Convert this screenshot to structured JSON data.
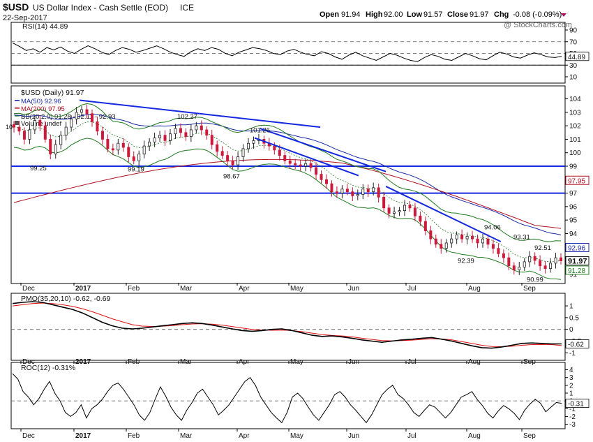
{
  "header": {
    "symbol": "$USD",
    "name": "US Dollar Index - Cash Settle (EOD)",
    "exchange": "ICE",
    "date": "22-Sep-2017",
    "open_label": "Open",
    "open": "91.94",
    "high_label": "High",
    "high": "92.00",
    "low_label": "Low",
    "low": "91.57",
    "close_label": "Close",
    "close": "91.97",
    "chg_label": "Chg",
    "chg": "-0.08 (-0.09%)",
    "watermark": "@ StockCharts.com"
  },
  "colors": {
    "price_up": "#222222",
    "price_down": "#cc1a3a",
    "ma50": "#1a2aa8",
    "ma200": "#b01020",
    "bollinger": "#1f7a1f",
    "bb_mid": "#1f7a1f",
    "trend": "#1428e0",
    "pmo": "#000000",
    "pmo_signal": "#e01010",
    "rsi_fill": "#7a5a5a"
  },
  "chart_data": [
    {
      "type": "line",
      "panel": "rsi",
      "title": "RSI(14) 44.89",
      "y_ticks": [
        10,
        30,
        50,
        70,
        90
      ],
      "ylim": [
        10,
        90
      ],
      "guides": [
        30,
        50,
        70
      ],
      "last": "44.89",
      "series": [
        {
          "name": "RSI(14)",
          "values": [
            68,
            62,
            55,
            58,
            52,
            60,
            56,
            61,
            54,
            50,
            57,
            63,
            58,
            52,
            48,
            55,
            60,
            57,
            52,
            55,
            59,
            63,
            58,
            52,
            48,
            45,
            53,
            58,
            55,
            60,
            57,
            50,
            46,
            52,
            56,
            60,
            58,
            55,
            50,
            48,
            54,
            57,
            52,
            48,
            46,
            53,
            50,
            44,
            40,
            47,
            52,
            46,
            42,
            38,
            44,
            50,
            47,
            42,
            38,
            36,
            43,
            48,
            45,
            40,
            38,
            44,
            50,
            46,
            41,
            39,
            46,
            52,
            49,
            44,
            42,
            47,
            51,
            48,
            44,
            43,
            45
          ]
        }
      ]
    },
    {
      "type": "candlestick",
      "panel": "price",
      "title": "$USD (Daily) 91.97",
      "legend": [
        {
          "label": "MA(50) 92.96",
          "color": "#1a2aa8"
        },
        {
          "label": "MA(200) 97.95",
          "color": "#b01020"
        },
        {
          "label": "BB(20,2.0) 91.28 - 92.11 - 92.93",
          "color": "#1f7a1f"
        },
        {
          "label": "Volume undef",
          "color": "#555555"
        }
      ],
      "y_ticks": [
        91,
        92,
        93,
        94,
        95,
        96,
        97,
        98,
        99,
        100,
        101,
        102,
        103,
        104
      ],
      "ylim": [
        90.6,
        104.6
      ],
      "x_ticks": [
        "Dec",
        "2017",
        "Feb",
        "Mar",
        "Apr",
        "May",
        "Jun",
        "Jul",
        "Aug",
        "Sep"
      ],
      "closes": [
        101.9,
        101.6,
        101.0,
        101.7,
        102.4,
        102.0,
        101.0,
        99.9,
        100.6,
        101.3,
        101.9,
        102.5,
        103.0,
        103.2,
        102.9,
        102.3,
        101.6,
        101.0,
        100.3,
        100.2,
        100.7,
        100.4,
        99.7,
        99.4,
        99.9,
        100.5,
        100.8,
        101.1,
        101.3,
        100.9,
        101.4,
        101.8,
        101.5,
        101.2,
        101.7,
        102.0,
        101.7,
        101.3,
        100.6,
        100.1,
        99.8,
        99.4,
        99.1,
        99.7,
        100.3,
        100.7,
        100.9,
        101.0,
        100.7,
        100.5,
        100.2,
        99.8,
        99.4,
        99.2,
        99.1,
        99.0,
        99.2,
        98.9,
        98.4,
        98.0,
        97.7,
        97.1,
        97.0,
        97.3,
        97.1,
        96.8,
        96.9,
        97.3,
        97.1,
        97.4,
        96.7,
        95.9,
        95.5,
        95.6,
        95.7,
        96.1,
        95.9,
        95.3,
        94.9,
        94.2,
        93.6,
        93.2,
        92.9,
        93.3,
        93.6,
        93.9,
        93.6,
        93.8,
        93.6,
        93.3,
        93.6,
        93.2,
        92.9,
        92.5,
        92.2,
        91.6,
        91.3,
        91.5,
        91.9,
        92.3,
        92.0,
        91.6,
        91.4,
        91.8,
        92.2,
        91.97
      ],
      "callouts": [
        "99.25",
        "99.19",
        "102.27",
        "98.67",
        "101.26",
        "94.06",
        "93.31",
        "92.39",
        "92.51",
        "90.99"
      ],
      "horizontal_lines": [
        99.0,
        97.0
      ],
      "trend_lines": [
        [
          103.9,
          101.9
        ],
        [
          101.8,
          98.6
        ],
        [
          101.1,
          98.3
        ],
        [
          97.5,
          93.4
        ]
      ],
      "right_badges": [
        {
          "label": "97.95",
          "value": 97.95,
          "color": "#b01020"
        },
        {
          "label": "92.96",
          "value": 92.96,
          "color": "#1a2aa8"
        },
        {
          "label": "91.97",
          "value": 91.97,
          "color": "#111111"
        },
        {
          "label": "91.28",
          "value": 91.28,
          "color": "#1f7a1f"
        }
      ]
    },
    {
      "type": "line",
      "panel": "pmo",
      "title": "PMO(35,20,10) -0.62, -0.69",
      "y_ticks": [
        1.0,
        0.5,
        0.0,
        -0.5,
        -1.0
      ],
      "ylim": [
        -1.2,
        1.3
      ],
      "last": "-0.62",
      "series": [
        {
          "name": "PMO(35,20,10)",
          "values": [
            1.1,
            1.15,
            1.18,
            1.15,
            1.05,
            0.95,
            0.85,
            0.7,
            0.5,
            0.3,
            0.15,
            0.05,
            0.02,
            0.05,
            0.1,
            0.15,
            0.2,
            0.25,
            0.28,
            0.25,
            0.18,
            0.1,
            0.02,
            -0.05,
            -0.08,
            -0.05,
            0.0,
            0.02,
            -0.05,
            -0.15,
            -0.25,
            -0.3,
            -0.28,
            -0.32,
            -0.38,
            -0.45,
            -0.5,
            -0.55,
            -0.5,
            -0.45,
            -0.42,
            -0.38,
            -0.35,
            -0.42,
            -0.5,
            -0.6,
            -0.7,
            -0.78,
            -0.8,
            -0.75,
            -0.68,
            -0.6,
            -0.58,
            -0.6,
            -0.62,
            -0.62
          ]
        },
        {
          "name": "-0.69",
          "values": [
            1.0,
            1.05,
            1.1,
            1.12,
            1.1,
            1.05,
            0.98,
            0.88,
            0.75,
            0.6,
            0.45,
            0.32,
            0.2,
            0.14,
            0.12,
            0.13,
            0.16,
            0.2,
            0.23,
            0.24,
            0.22,
            0.18,
            0.12,
            0.06,
            0.0,
            -0.03,
            -0.04,
            -0.03,
            -0.05,
            -0.1,
            -0.16,
            -0.22,
            -0.26,
            -0.28,
            -0.32,
            -0.38,
            -0.43,
            -0.48,
            -0.49,
            -0.48,
            -0.46,
            -0.43,
            -0.4,
            -0.41,
            -0.45,
            -0.52,
            -0.6,
            -0.68,
            -0.73,
            -0.74,
            -0.72,
            -0.68,
            -0.65,
            -0.64,
            -0.65,
            -0.69
          ]
        }
      ]
    },
    {
      "type": "line",
      "panel": "roc",
      "title": "ROC(12) -0.31%",
      "y_ticks": [
        4,
        3,
        2,
        1,
        0,
        -1,
        -2,
        -3
      ],
      "ylim": [
        -3.4,
        4.5
      ],
      "last": "-0.31",
      "series": [
        {
          "name": "ROC(12)",
          "values": [
            3.5,
            2.8,
            1.2,
            0.5,
            -0.5,
            0.3,
            1.5,
            2.5,
            1.0,
            0.0,
            -1.5,
            -2.0,
            -1.5,
            -0.5,
            -2.2,
            -1.0,
            -0.5,
            0.2,
            1.2,
            2.0,
            2.3,
            1.5,
            0.5,
            -0.5,
            -1.8,
            -2.5,
            -1.5,
            0.2,
            1.8,
            0.6,
            -0.8,
            -1.8,
            -2.5,
            -1.2,
            -0.2,
            1.0,
            1.5,
            0.5,
            -0.5,
            -1.8,
            -1.2,
            -0.5,
            0.5,
            1.5,
            2.5,
            3.0,
            2.0,
            0.5,
            -0.5,
            -1.5,
            -2.2,
            -2.8,
            -1.5,
            0.5,
            1.0,
            0.3,
            -0.8,
            -1.8,
            -2.5,
            -1.5,
            -0.5,
            0.8,
            1.2,
            0.5,
            -0.5,
            -1.2,
            -2.0,
            -2.8,
            -1.8,
            -0.5,
            0.8,
            1.5,
            2.0,
            0.8,
            0.3,
            -0.5,
            -1.5,
            -2.0,
            -1.2,
            -0.5,
            -0.8,
            -1.5,
            -2.2,
            -1.5,
            -0.5,
            0.5,
            0.8,
            1.2,
            0.2,
            -0.6,
            -1.6,
            -2.2,
            -1.3,
            -0.6,
            -1.0,
            -1.6,
            -2.4,
            -1.2,
            -0.4,
            0.2,
            -0.3,
            -1.4,
            -0.8,
            -0.2,
            -0.31
          ]
        }
      ]
    }
  ]
}
